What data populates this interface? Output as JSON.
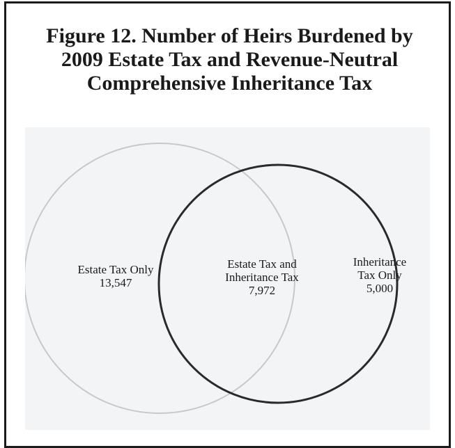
{
  "figure": {
    "title_lines": [
      "Figure 12. Number of Heirs Burdened by",
      "2009 Estate Tax and Revenue-Neutral",
      "Comprehensive Inheritance Tax"
    ]
  },
  "venn": {
    "left_circle": {
      "label": "Estate Tax Only",
      "value": "13,547",
      "stroke_color": "#c8c8c8"
    },
    "overlap": {
      "label_lines": [
        "Estate Tax and",
        "Inheritance Tax"
      ],
      "value": "7,972"
    },
    "right_circle": {
      "label_lines": [
        "Inheritance",
        "Tax Only"
      ],
      "value": "5,000",
      "stroke_color": "#2a2a2a"
    }
  },
  "colors": {
    "border": "#1a1a1a",
    "panel_background": "#f3f4f6"
  }
}
